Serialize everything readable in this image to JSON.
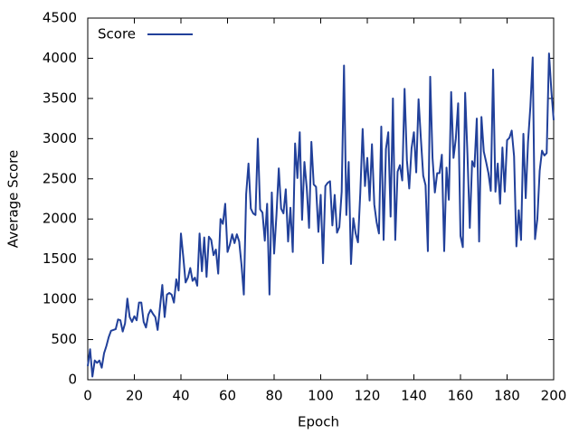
{
  "chart_data": {
    "type": "line",
    "x_label": "Epoch",
    "y_label": "Average Score",
    "legend": "top-left",
    "grid": false,
    "xlim": [
      0,
      200
    ],
    "xticks": [
      0,
      20,
      40,
      60,
      80,
      100,
      120,
      140,
      160,
      180,
      200
    ],
    "ylim": [
      0,
      4500
    ],
    "yticks": [
      0,
      500,
      1000,
      1500,
      2000,
      2500,
      3000,
      3500,
      4000,
      4500
    ],
    "x": [
      0,
      1,
      2,
      3,
      4,
      5,
      6,
      7,
      8,
      9,
      10,
      11,
      12,
      13,
      14,
      15,
      16,
      17,
      18,
      19,
      20,
      21,
      22,
      23,
      24,
      25,
      26,
      27,
      28,
      29,
      30,
      31,
      32,
      33,
      34,
      35,
      36,
      37,
      38,
      39,
      40,
      41,
      42,
      43,
      44,
      45,
      46,
      47,
      48,
      49,
      50,
      51,
      52,
      53,
      54,
      55,
      56,
      57,
      58,
      59,
      60,
      61,
      62,
      63,
      64,
      65,
      66,
      67,
      68,
      69,
      70,
      71,
      72,
      73,
      74,
      75,
      76,
      77,
      78,
      79,
      80,
      81,
      82,
      83,
      84,
      85,
      86,
      87,
      88,
      89,
      90,
      91,
      92,
      93,
      94,
      95,
      96,
      97,
      98,
      99,
      100,
      101,
      102,
      103,
      104,
      105,
      106,
      107,
      108,
      109,
      110,
      111,
      112,
      113,
      114,
      115,
      116,
      117,
      118,
      119,
      120,
      121,
      122,
      123,
      124,
      125,
      126,
      127,
      128,
      129,
      130,
      131,
      132,
      133,
      134,
      135,
      136,
      137,
      138,
      139,
      140,
      141,
      142,
      143,
      144,
      145,
      146,
      147,
      148,
      149,
      150,
      151,
      152,
      153,
      154,
      155,
      156,
      157,
      158,
      159,
      160,
      161,
      162,
      163,
      164,
      165,
      166,
      167,
      168,
      169,
      170,
      171,
      172,
      173,
      174,
      175,
      176,
      177,
      178,
      179,
      180,
      181,
      182,
      183,
      184,
      185,
      186,
      187,
      188,
      189,
      190,
      191,
      192,
      193,
      194,
      195,
      196,
      197,
      198,
      199,
      200
    ],
    "series": [
      {
        "name": "Score",
        "color": "#21409a",
        "values": [
          170,
          380,
          40,
          240,
          210,
          240,
          150,
          330,
          420,
          530,
          610,
          620,
          630,
          750,
          740,
          600,
          700,
          1010,
          780,
          720,
          790,
          740,
          960,
          960,
          720,
          650,
          810,
          870,
          820,
          780,
          620,
          900,
          1180,
          780,
          1060,
          1080,
          1060,
          960,
          1250,
          1110,
          1820,
          1530,
          1210,
          1270,
          1390,
          1230,
          1270,
          1170,
          1820,
          1350,
          1770,
          1280,
          1780,
          1740,
          1550,
          1620,
          1320,
          2000,
          1940,
          2190,
          1590,
          1680,
          1810,
          1700,
          1810,
          1720,
          1430,
          1060,
          2310,
          2690,
          2130,
          2070,
          2050,
          3000,
          2120,
          2080,
          1730,
          2190,
          1060,
          2330,
          1570,
          2050,
          2630,
          2130,
          2070,
          2370,
          1720,
          2140,
          1590,
          2940,
          2510,
          3080,
          1990,
          2710,
          2390,
          1890,
          2960,
          2430,
          2400,
          1840,
          2300,
          1450,
          2410,
          2450,
          2470,
          1920,
          2300,
          1830,
          1900,
          2340,
          3910,
          2050,
          2710,
          1440,
          2010,
          1820,
          1710,
          2330,
          3120,
          2410,
          2760,
          2230,
          2930,
          2180,
          1960,
          1820,
          3150,
          1740,
          2870,
          3080,
          2030,
          3500,
          1740,
          2590,
          2670,
          2480,
          3620,
          2730,
          2380,
          2880,
          3080,
          2580,
          3490,
          3000,
          2540,
          2420,
          1600,
          3770,
          2760,
          2330,
          2570,
          2570,
          2800,
          1600,
          2640,
          2240,
          3580,
          2760,
          3000,
          3440,
          1790,
          1650,
          3570,
          2800,
          1890,
          2720,
          2650,
          3250,
          1720,
          3270,
          2840,
          2710,
          2570,
          2350,
          3860,
          2340,
          2690,
          2190,
          2890,
          2340,
          2980,
          3010,
          3100,
          2780,
          1660,
          2110,
          1740,
          3060,
          2260,
          2960,
          3400,
          4010,
          1750,
          2000,
          2600,
          2850,
          2790,
          2820,
          4060,
          3600,
          3230
        ]
      }
    ]
  }
}
